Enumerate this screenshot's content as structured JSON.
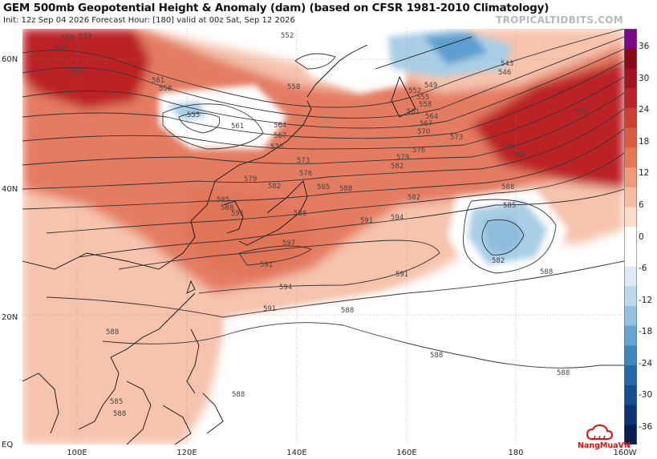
{
  "header": {
    "title": "GEM 500mb Geopotential Height & Anomaly (dam) (based on CFSR 1981-2010 Climatology)",
    "subtitle": "Init: 12z Sep 04 2026   Forecast Hour: [180]   valid at 00z Sat, Sep 12 2026",
    "brand": "TROPICALTIDBITS.COM"
  },
  "map": {
    "lat_labels": [
      "60N",
      "40N",
      "20N",
      "EQ"
    ],
    "lon_labels": [
      "100E",
      "120E",
      "140E",
      "160E",
      "180",
      "160W"
    ],
    "contour_labels": [
      "573",
      "576",
      "579",
      "582",
      "552",
      "561",
      "558",
      "555",
      "561",
      "558",
      "564",
      "567",
      "570",
      "573",
      "576",
      "579",
      "582",
      "585",
      "588",
      "591",
      "594",
      "597",
      "594",
      "591",
      "588",
      "543",
      "546",
      "549",
      "552",
      "555",
      "558",
      "561",
      "564",
      "567",
      "570",
      "573",
      "576",
      "579",
      "582",
      "585",
      "588",
      "591",
      "588",
      "585",
      "582",
      "588",
      "591",
      "591",
      "588",
      "588",
      "588",
      "588",
      "588",
      "585",
      "588",
      "582",
      "585",
      "588",
      "591"
    ],
    "anomaly_palette": {
      "strong_positive": "#b61622",
      "positive": "#e07055",
      "weak_positive": "#f6c3ad",
      "negative": "#a9cfe6",
      "strong_negative": "#5e9fcf"
    },
    "contour_color": "#333333",
    "coast_color": "#111111"
  },
  "colorbar": {
    "labels": [
      "36",
      "30",
      "24",
      "18",
      "12",
      "6",
      "0",
      "-6",
      "-12",
      "-18",
      "-24",
      "-30",
      "-36"
    ],
    "colors": [
      "#7a0b86",
      "#8b0a1a",
      "#a31420",
      "#b92629",
      "#cc3f33",
      "#db5a44",
      "#e57858",
      "#ef9a7a",
      "#f6bda3",
      "#fadcc9",
      "#ffffff",
      "#ffffff",
      "#dcebf5",
      "#bcd9ec",
      "#94c2e0",
      "#67a5d1",
      "#3f86bf",
      "#2468aa",
      "#164d90",
      "#0e3572",
      "#0a1f50"
    ]
  },
  "logo": {
    "text": "NangMuaVN"
  }
}
